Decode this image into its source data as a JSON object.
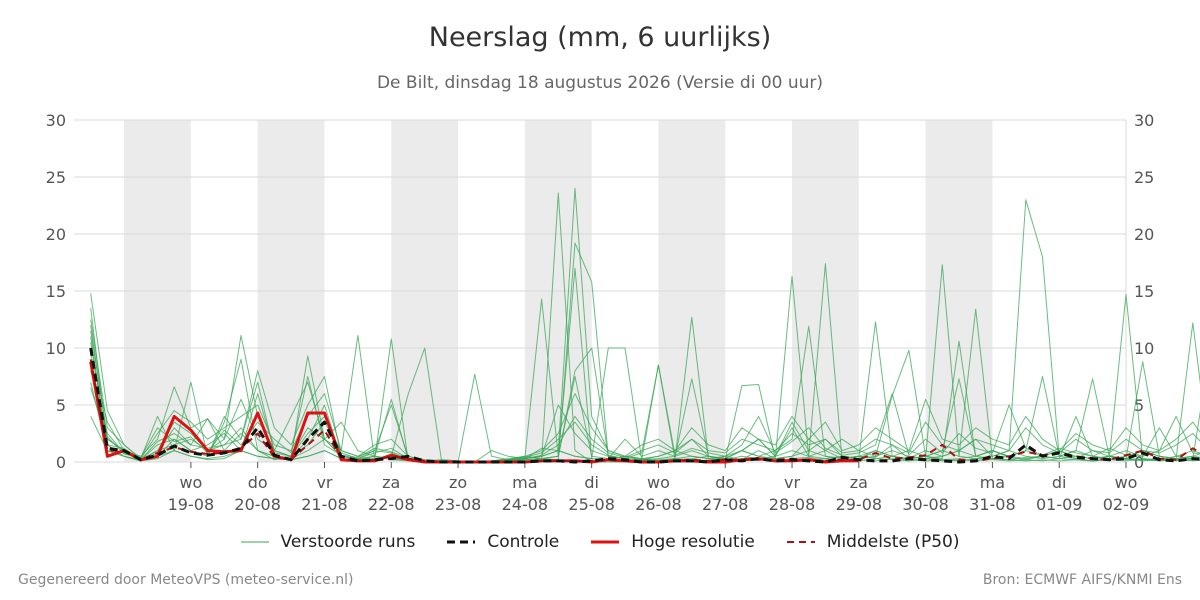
{
  "header": {
    "title": "Neerslag (mm, 6 uurlijks)",
    "subtitle": "De Bilt, dinsdag 18 augustus 2026 (Versie di 00 uur)"
  },
  "footer": {
    "left": "Gegenereerd door MeteoVPS (meteo-service.nl)",
    "right": "Bron: ECMWF AIFS/KNMI Ens"
  },
  "colors": {
    "ensemble": "#3aa655",
    "control": "#111111",
    "high_res": "#dd1111",
    "median": "#aa1111",
    "weekend_band": "#ebebeb",
    "grid": "#d9d9d9"
  },
  "chart_data": {
    "type": "line",
    "title": "Neerslag (mm, 6 uurlijks)",
    "ylabel": "",
    "ylim": [
      0,
      30
    ],
    "yticks": [
      0,
      5,
      10,
      15,
      20,
      25,
      30
    ],
    "y_axis_right": true,
    "grid": true,
    "legend_position": "bottom",
    "x_step_hours": 6,
    "x_start": "2026-08-18T00",
    "x_range_days": [
      -0.75,
      15
    ],
    "weekend_bands_day_index": [
      [
        0,
        1
      ],
      [
        2,
        3
      ],
      [
        4,
        5
      ],
      [
        6,
        7
      ],
      [
        8,
        9
      ],
      [
        10,
        11
      ],
      [
        12,
        13
      ]
    ],
    "day_ticks": [
      {
        "dow": "wo",
        "date": "19-08"
      },
      {
        "dow": "do",
        "date": "20-08"
      },
      {
        "dow": "vr",
        "date": "21-08"
      },
      {
        "dow": "za",
        "date": "22-08"
      },
      {
        "dow": "zo",
        "date": "23-08"
      },
      {
        "dow": "ma",
        "date": "24-08"
      },
      {
        "dow": "di",
        "date": "25-08"
      },
      {
        "dow": "wo",
        "date": "26-08"
      },
      {
        "dow": "do",
        "date": "27-08"
      },
      {
        "dow": "vr",
        "date": "28-08"
      },
      {
        "dow": "za",
        "date": "29-08"
      },
      {
        "dow": "zo",
        "date": "30-08"
      },
      {
        "dow": "ma",
        "date": "31-08"
      },
      {
        "dow": "di",
        "date": "01-09"
      },
      {
        "dow": "wo",
        "date": "02-09"
      }
    ],
    "legend": [
      {
        "key": "ensemble",
        "label": "Verstoorde runs",
        "style": "thin"
      },
      {
        "key": "control",
        "label": "Controle",
        "style": "dashed"
      },
      {
        "key": "high_res",
        "label": "Hoge resolutie",
        "style": "solid"
      },
      {
        "key": "median",
        "label": "Middelste (P50)",
        "style": "dashed-thin"
      }
    ],
    "series": [
      {
        "name": "Controle",
        "key": "control",
        "values": [
          10,
          1.2,
          1.0,
          0.2,
          0.6,
          1.4,
          0.8,
          0.6,
          0.8,
          1.2,
          3.0,
          0.6,
          0.2,
          2.0,
          3.5,
          0.5,
          0.1,
          0.2,
          0.3,
          0.5,
          0.1,
          0.0,
          0.0,
          0.0,
          0.0,
          0.0,
          0.0,
          0.1,
          0.1,
          0.0,
          0.1,
          0.3,
          0.2,
          0.0,
          0.0,
          0.1,
          0.1,
          0.0,
          0.2,
          0.1,
          0.3,
          0.1,
          0.2,
          0.1,
          0.0,
          0.4,
          0.2,
          0.1,
          0.1,
          0.3,
          0.2,
          0.1,
          0.0,
          0.1,
          0.5,
          0.3,
          1.5,
          0.5,
          0.8,
          0.4,
          0.3,
          0.2,
          0.3,
          0.8,
          0.2,
          0.1,
          0.3,
          0.2
        ]
      },
      {
        "name": "Hoge resolutie",
        "key": "high_res",
        "values": [
          8.8,
          0.5,
          1.0,
          0.2,
          0.5,
          4.0,
          2.8,
          1.0,
          0.9,
          1.0,
          4.3,
          0.5,
          0.2,
          4.3,
          4.3,
          0.2,
          0.1,
          0.1,
          0.6,
          0.2,
          0.0,
          0.0,
          0.0,
          0.0,
          0.0,
          0.0,
          0.0,
          0.1,
          0.1,
          0.1,
          0.0,
          0.2,
          0.1,
          0.0,
          0.0,
          0.1,
          0.1,
          0.0,
          0.0,
          0.2,
          0.3,
          0.1,
          0.1,
          0.2,
          0.0,
          0.1,
          0.1
        ]
      },
      {
        "name": "Middelste (P50)",
        "key": "median",
        "values": [
          9.0,
          1.0,
          1.0,
          0.2,
          0.8,
          1.3,
          0.9,
          0.7,
          0.8,
          1.2,
          2.5,
          0.4,
          0.2,
          1.5,
          2.8,
          0.3,
          0.1,
          0.2,
          0.5,
          0.3,
          0.1,
          0.0,
          0.0,
          0.0,
          0.0,
          0.0,
          0.0,
          0.1,
          0.1,
          0.1,
          0.1,
          0.2,
          0.1,
          0.0,
          0.0,
          0.1,
          0.2,
          0.1,
          0.2,
          0.2,
          0.2,
          0.2,
          0.3,
          0.1,
          0.1,
          0.2,
          0.2,
          0.8,
          0.3,
          0.4,
          0.6,
          1.5,
          0.2,
          0.1,
          0.3,
          0.5,
          0.9,
          0.6,
          0.8,
          0.5,
          0.3,
          0.2,
          0.6,
          1.0,
          0.3,
          0.2,
          1.2,
          0.3
        ]
      },
      {
        "name": "",
        "key": "ensemble",
        "values": [
          14.8,
          4.5,
          1.5,
          0.3,
          4.0,
          1.0,
          7.0,
          0.5,
          3.5,
          9.0,
          1.0,
          0.2,
          0.5,
          9.3,
          2.0,
          1.0,
          11.1,
          0.2,
          10.8,
          0.2,
          0.0,
          0.1,
          0.0,
          0.0,
          0.0,
          0.0,
          0.0,
          0.1,
          23.6,
          1.0,
          0.0,
          0.0,
          0.0,
          0.2,
          0.1,
          0.3,
          0.1,
          0.0,
          0.5,
          0.2,
          1.0,
          0.3,
          0.5,
          2.0,
          1.0,
          0.3,
          0.5,
          0.4,
          1.5,
          0.3,
          0.5,
          0.2,
          0.3,
          0.5,
          1.0,
          0.4,
          0.2,
          0.5,
          1.0,
          0.3,
          0.1,
          0.5,
          0.2,
          0.3,
          0.1,
          0.2,
          0.3,
          0.1
        ]
      },
      {
        "name": "",
        "key": "ensemble",
        "values": [
          12.0,
          2.0,
          1.0,
          0.5,
          2.0,
          6.6,
          3.0,
          3.8,
          2.0,
          11.1,
          4.0,
          1.0,
          4.0,
          7.0,
          2.0,
          3.5,
          1.0,
          0.5,
          5.5,
          0.3,
          0.1,
          0.0,
          0.0,
          0.0,
          1.0,
          0.5,
          0.3,
          1.2,
          1.0,
          24.0,
          4.0,
          1.0,
          0.5,
          0.2,
          0.1,
          0.1,
          0.2,
          0.1,
          0.3,
          0.1,
          0.2,
          0.1,
          0.3,
          0.4,
          0.1,
          0.2,
          0.1,
          0.3,
          0.2,
          0.1,
          0.3,
          0.1,
          0.2,
          0.1,
          0.3,
          0.2,
          0.1,
          0.2,
          0.1,
          0.2,
          0.1,
          0.2,
          0.3,
          0.1,
          0.2,
          0.1,
          0.2,
          0.1
        ]
      },
      {
        "name": "",
        "key": "ensemble",
        "values": [
          11.0,
          1.0,
          0.8,
          0.2,
          1.5,
          2.0,
          1.0,
          0.5,
          4.0,
          2.0,
          8.0,
          3.0,
          1.5,
          5.0,
          7.5,
          0.5,
          0.3,
          1.0,
          0.8,
          0.2,
          0.1,
          0.2,
          0.1,
          0.0,
          0.1,
          0.2,
          0.5,
          0.3,
          0.2,
          19.2,
          15.8,
          0.5,
          0.3,
          0.2,
          0.1,
          0.3,
          12.7,
          0.3,
          0.2,
          0.1,
          0.2,
          0.3,
          0.1,
          0.2,
          0.3,
          0.1,
          0.2,
          0.1,
          0.3,
          0.2,
          0.1,
          0.2,
          0.1,
          0.3,
          0.2,
          0.1,
          0.2,
          0.1,
          0.3,
          0.2,
          0.1,
          0.2,
          0.1,
          0.2,
          0.1,
          0.2,
          0.1,
          0.2
        ]
      },
      {
        "name": "",
        "key": "ensemble",
        "values": [
          9.5,
          3.5,
          1.0,
          0.1,
          0.5,
          1.0,
          0.5,
          0.2,
          0.3,
          1.0,
          0.5,
          0.3,
          0.2,
          0.5,
          1.0,
          0.3,
          0.2,
          0.5,
          0.3,
          0.2,
          0.1,
          0.0,
          0.0,
          0.0,
          0.1,
          0.2,
          0.4,
          14.3,
          0.5,
          17.0,
          0.3,
          10.0,
          10.0,
          0.2,
          8.5,
          0.2,
          0.3,
          0.5,
          0.2,
          6.7,
          6.8,
          0.3,
          16.3,
          0.5,
          17.4,
          0.2,
          0.3,
          12.3,
          0.5,
          0.2,
          0.3,
          17.3,
          0.5,
          13.4,
          0.3,
          0.2,
          0.4,
          0.5,
          0.3,
          4.0,
          0.5,
          0.3,
          14.7,
          0.3,
          0.2,
          0.5,
          0.3,
          9.5
        ]
      },
      {
        "name": "",
        "key": "ensemble",
        "values": [
          13.5,
          1.5,
          0.5,
          0.2,
          0.8,
          3.0,
          1.5,
          3.8,
          1.0,
          2.5,
          1.0,
          0.5,
          0.3,
          2.0,
          5.0,
          0.3,
          0.2,
          0.5,
          0.2,
          0.1,
          0.1,
          0.0,
          0.0,
          0.0,
          0.0,
          0.1,
          0.3,
          0.5,
          5.0,
          2.5,
          1.0,
          0.5,
          0.3,
          0.2,
          0.5,
          1.0,
          2.0,
          0.5,
          0.3,
          1.0,
          2.0,
          0.5,
          3.5,
          1.0,
          2.0,
          0.5,
          0.3,
          1.0,
          0.5,
          0.3,
          1.0,
          0.5,
          1.0,
          2.0,
          0.5,
          1.0,
          23.0,
          18.0,
          0.5,
          0.3,
          1.0,
          0.5,
          0.3,
          1.0,
          0.5,
          0.3,
          0.5,
          0.3
        ]
      },
      {
        "name": "",
        "key": "ensemble",
        "values": [
          8.0,
          2.5,
          0.8,
          0.2,
          1.0,
          1.5,
          2.0,
          1.0,
          1.5,
          3.0,
          1.0,
          0.5,
          0.3,
          1.0,
          2.0,
          0.5,
          0.2,
          0.3,
          0.5,
          0.2,
          0.1,
          0.0,
          0.0,
          0.0,
          0.0,
          0.1,
          0.2,
          0.3,
          0.5,
          8.0,
          10.0,
          0.5,
          0.3,
          0.2,
          0.3,
          0.5,
          1.0,
          0.5,
          0.3,
          1.0,
          0.5,
          1.0,
          2.0,
          11.9,
          0.5,
          0.3,
          0.5,
          0.3,
          0.5,
          1.0,
          0.5,
          0.3,
          10.6,
          0.5,
          1.0,
          0.5,
          0.3,
          0.5,
          1.0,
          0.5,
          0.3,
          0.5,
          0.3,
          0.2,
          0.3,
          0.2,
          0.3,
          0.2
        ]
      },
      {
        "name": "",
        "key": "ensemble",
        "values": [
          7.0,
          1.0,
          0.5,
          0.1,
          0.5,
          2.0,
          1.0,
          1.5,
          2.5,
          1.0,
          6.0,
          1.0,
          0.5,
          1.5,
          3.5,
          1.0,
          0.5,
          1.0,
          5.0,
          0.5,
          0.1,
          0.0,
          0.0,
          0.0,
          0.0,
          0.1,
          0.2,
          0.3,
          0.5,
          7.5,
          0.5,
          0.3,
          2.0,
          0.5,
          1.0,
          0.5,
          7.3,
          0.5,
          0.3,
          1.0,
          2.0,
          0.5,
          3.0,
          0.5,
          1.0,
          2.0,
          1.0,
          0.5,
          5.8,
          9.8,
          0.5,
          1.0,
          7.3,
          0.5,
          1.0,
          0.5,
          1.0,
          7.5,
          0.5,
          1.0,
          7.3,
          0.5,
          1.0,
          0.5,
          3.0,
          0.5,
          1.0,
          0.5
        ]
      },
      {
        "name": "",
        "key": "ensemble",
        "values": [
          6.5,
          2.0,
          1.0,
          0.2,
          1.0,
          3.5,
          2.5,
          1.0,
          2.0,
          5.5,
          2.0,
          1.0,
          0.5,
          3.0,
          2.0,
          0.5,
          0.3,
          0.5,
          0.3,
          0.2,
          0.1,
          0.0,
          0.0,
          7.7,
          0.5,
          0.2,
          0.3,
          0.5,
          1.0,
          0.5,
          0.3,
          0.2,
          0.5,
          0.3,
          0.2,
          0.3,
          0.5,
          0.3,
          0.2,
          0.5,
          0.3,
          0.5,
          1.0,
          0.5,
          0.3,
          0.5,
          0.3,
          0.5,
          1.0,
          0.5,
          0.3,
          0.5,
          1.0,
          0.5,
          0.3,
          0.5,
          1.0,
          0.5,
          0.3,
          0.5,
          0.3,
          0.5,
          0.3,
          8.8,
          0.5,
          0.3,
          12.2,
          0.5
        ]
      },
      {
        "name": "",
        "key": "ensemble",
        "values": [
          4.0,
          1.0,
          0.5,
          0.1,
          0.3,
          1.0,
          0.5,
          0.3,
          0.5,
          1.0,
          0.5,
          0.3,
          0.2,
          0.5,
          1.0,
          0.3,
          0.2,
          0.3,
          0.5,
          5.9,
          10.0,
          0.2,
          0.1,
          0.0,
          0.1,
          0.2,
          0.3,
          0.5,
          1.0,
          0.5,
          0.3,
          0.2,
          0.5,
          0.3,
          0.5,
          1.0,
          0.5,
          0.3,
          0.5,
          1.0,
          0.5,
          0.3,
          0.5,
          1.0,
          0.5,
          0.3,
          0.5,
          1.0,
          0.5,
          0.3,
          0.5,
          1.0,
          0.5,
          0.3,
          0.5,
          1.0,
          0.5,
          0.3,
          0.5,
          1.0,
          0.5,
          0.3,
          0.5,
          1.0,
          0.5,
          0.3,
          0.5,
          1.0
        ]
      },
      {
        "name": "",
        "key": "ensemble",
        "values": [
          12.5,
          3.0,
          1.5,
          0.3,
          2.5,
          4.5,
          3.5,
          2.0,
          3.0,
          4.0,
          5.0,
          1.5,
          1.0,
          4.0,
          6.0,
          1.0,
          0.5,
          1.5,
          2.0,
          0.5,
          0.2,
          0.1,
          0.0,
          0.0,
          0.1,
          0.3,
          0.5,
          1.0,
          2.5,
          6.0,
          3.0,
          1.0,
          0.5,
          1.5,
          2.0,
          1.0,
          3.0,
          1.5,
          1.0,
          3.0,
          2.0,
          1.5,
          4.0,
          2.0,
          3.5,
          1.0,
          1.5,
          3.0,
          2.0,
          1.0,
          5.5,
          2.0,
          1.5,
          3.0,
          2.0,
          1.5,
          4.0,
          2.0,
          1.0,
          2.5,
          1.5,
          1.0,
          3.0,
          1.5,
          1.0,
          2.0,
          3.5,
          1.5
        ]
      },
      {
        "name": "",
        "key": "ensemble",
        "values": [
          10.5,
          1.5,
          1.2,
          0.2,
          1.8,
          2.5,
          1.5,
          1.2,
          1.5,
          2.0,
          7.0,
          0.8,
          0.5,
          2.5,
          4.0,
          0.8,
          0.3,
          0.8,
          1.2,
          0.3,
          0.1,
          0.1,
          0.0,
          0.0,
          0.0,
          0.2,
          0.3,
          0.6,
          1.5,
          4.0,
          2.0,
          0.8,
          0.4,
          1.0,
          1.5,
          0.8,
          2.0,
          1.0,
          0.8,
          2.0,
          1.5,
          1.0,
          2.5,
          1.5,
          2.0,
          0.8,
          1.0,
          2.0,
          1.5,
          0.8,
          3.5,
          1.5,
          1.0,
          2.0,
          1.5,
          1.0,
          3.0,
          1.5,
          0.8,
          2.0,
          1.0,
          0.8,
          2.0,
          1.0,
          0.8,
          1.5,
          2.5,
          1.0
        ]
      },
      {
        "name": "",
        "key": "ensemble",
        "values": [
          11.5,
          2.2,
          0.7,
          0.4,
          3.0,
          1.8,
          2.2,
          0.8,
          2.8,
          1.5,
          3.5,
          2.0,
          0.8,
          7.5,
          1.5,
          0.6,
          0.4,
          1.2,
          0.9,
          0.3,
          0.1,
          0.0,
          0.0,
          0.0,
          0.1,
          0.2,
          0.4,
          0.8,
          2.0,
          3.5,
          1.5,
          0.6,
          0.3,
          0.8,
          8.5,
          0.6,
          1.2,
          0.8,
          0.5,
          1.5,
          4.0,
          0.8,
          1.8,
          3.0,
          1.2,
          0.6,
          0.8,
          1.5,
          6.0,
          0.6,
          2.0,
          0.8,
          2.5,
          1.2,
          0.8,
          5.0,
          1.2,
          0.6,
          1.2,
          0.8,
          0.5,
          1.2,
          0.6,
          0.5,
          1.0,
          4.0,
          0.8,
          0.6
        ]
      }
    ]
  }
}
